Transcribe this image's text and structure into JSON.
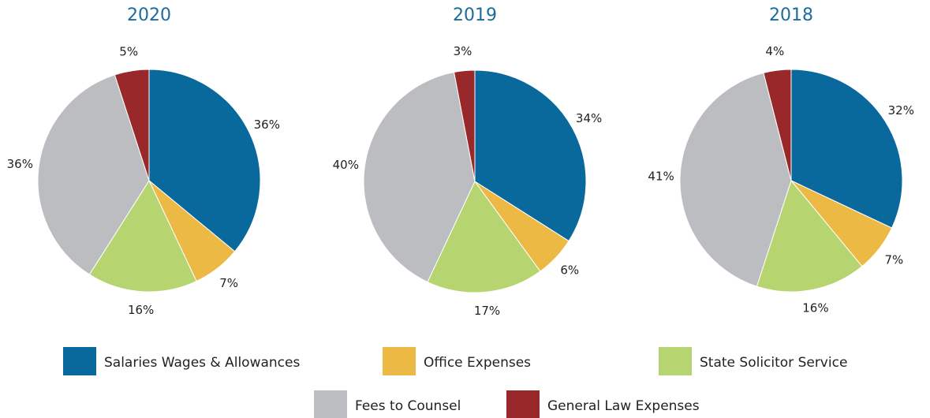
{
  "chart_data": [
    {
      "type": "pie",
      "title": "2020",
      "categories": [
        "Salaries Wages & Allowances",
        "Office Expenses",
        "State Solicitor Service",
        "Fees to Counsel",
        "General Law Expenses"
      ],
      "values": [
        36,
        7,
        16,
        36,
        5
      ],
      "value_labels": [
        "36%",
        "7%",
        "16%",
        "36%",
        "5%"
      ],
      "colors": [
        "#09689c",
        "#edb945",
        "#b6d46f",
        "#bcbdc1",
        "#98282a"
      ]
    },
    {
      "type": "pie",
      "title": "2019",
      "categories": [
        "Salaries Wages & Allowances",
        "Office Expenses",
        "State Solicitor Service",
        "Fees to Counsel",
        "General Law Expenses"
      ],
      "values": [
        34,
        6,
        17,
        40,
        3
      ],
      "value_labels": [
        "34%",
        "6%",
        "17%",
        "40%",
        "3%"
      ],
      "colors": [
        "#09689c",
        "#edb945",
        "#b6d46f",
        "#bcbdc1",
        "#98282a"
      ]
    },
    {
      "type": "pie",
      "title": "2018",
      "categories": [
        "Salaries Wages & Allowances",
        "Office Expenses",
        "State Solicitor Service",
        "Fees to Counsel",
        "General Law Expenses"
      ],
      "values": [
        32,
        7,
        16,
        41,
        4
      ],
      "value_labels": [
        "32%",
        "7%",
        "16%",
        "41%",
        "4%"
      ],
      "colors": [
        "#09689c",
        "#edb945",
        "#b6d46f",
        "#bcbdc1",
        "#98282a"
      ]
    }
  ]
}
